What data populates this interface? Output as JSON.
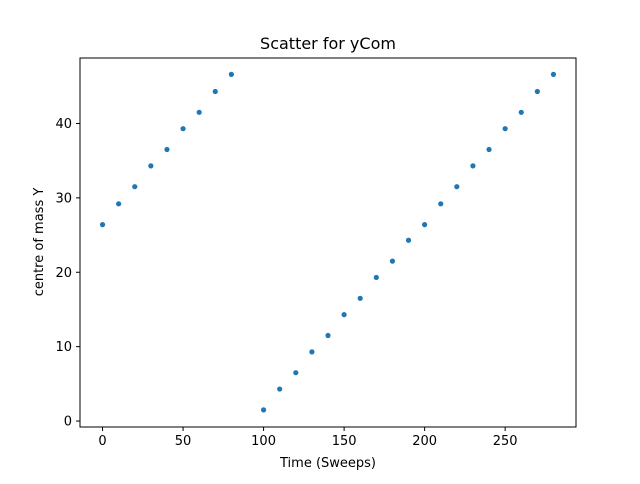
{
  "chart_data": {
    "type": "scatter",
    "title": "Scatter for yCom",
    "xlabel": "Time (Sweeps)",
    "ylabel": "centre of mass Y",
    "xlim": [
      -14,
      294
    ],
    "ylim": [
      -0.8,
      48.8
    ],
    "x_ticks": [
      0,
      50,
      100,
      150,
      200,
      250
    ],
    "y_ticks": [
      0,
      10,
      20,
      30,
      40
    ],
    "grid": false,
    "legend": "none",
    "marker_color": "#1f77b4",
    "series": [
      {
        "x": [
          0,
          10,
          20,
          30,
          40,
          50,
          60,
          70,
          80,
          100,
          110,
          120,
          130,
          140,
          150,
          160,
          170,
          180,
          190,
          200,
          210,
          220,
          230,
          240,
          250,
          260,
          270,
          280
        ],
        "y": [
          26.4,
          29.2,
          31.5,
          34.3,
          36.5,
          39.3,
          41.5,
          44.3,
          46.6,
          1.5,
          4.3,
          6.5,
          9.3,
          11.5,
          14.3,
          16.5,
          19.3,
          21.5,
          24.3,
          26.4,
          29.2,
          31.5,
          34.3,
          36.5,
          39.3,
          41.5,
          44.3,
          46.6
        ]
      }
    ]
  }
}
